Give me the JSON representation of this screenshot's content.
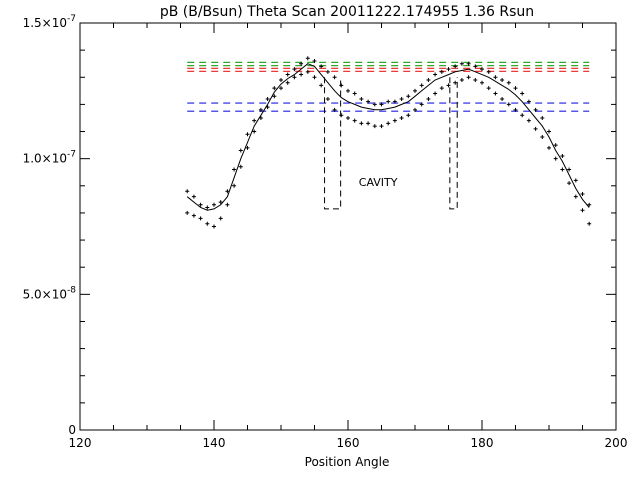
{
  "chart_data": {
    "type": "scatter",
    "title": "pB (B/Bsun) Theta Scan 20011222.174955 1.36 Rsun",
    "xlabel": "Position Angle",
    "ylabel": "",
    "xlim": [
      120,
      200
    ],
    "ylim": [
      0,
      1.5e-07
    ],
    "xticks": [
      120,
      140,
      160,
      180,
      200
    ],
    "yticks": [
      {
        "value": 0,
        "label": "0"
      },
      {
        "value": 5e-08,
        "mant": "5.0",
        "exp": "-8"
      },
      {
        "value": 1e-07,
        "mant": "1.0",
        "exp": "-7"
      },
      {
        "value": 1.5e-07,
        "mant": "1.5",
        "exp": "-7"
      }
    ],
    "tick_symbol": "×10",
    "grid": false,
    "annotation": {
      "text": "CAVITY",
      "color": "#e8201c",
      "x": 164.5,
      "y": 9e-08
    },
    "colors": {
      "green": "#2ea82e",
      "red": "#e8201c",
      "blue": "#1e1ee0",
      "black": "#000000"
    },
    "reference_lines": [
      {
        "color": "green",
        "y": 1.355e-07,
        "x0": 136,
        "x1": 196
      },
      {
        "color": "green",
        "y": 1.343e-07,
        "x0": 136,
        "x1": 196
      },
      {
        "color": "red",
        "y": 1.333e-07,
        "x0": 136,
        "x1": 196
      },
      {
        "color": "red",
        "y": 1.322e-07,
        "x0": 136,
        "x1": 196
      },
      {
        "color": "blue",
        "y": 1.205e-07,
        "x0": 136,
        "x1": 196
      },
      {
        "color": "blue",
        "y": 1.175e-07,
        "x0": 136,
        "x1": 196
      }
    ],
    "cavity_boundaries": [
      {
        "x0": 156.5,
        "x1": 158.9,
        "y_bottom": 8.15e-08,
        "y_top": 1.3e-07
      },
      {
        "x0": 175.2,
        "x1": 176.3,
        "y_bottom": 8.15e-08,
        "y_top": 1.3e-07
      }
    ],
    "series": [
      {
        "style": "crosses",
        "x": [
          136,
          137,
          138,
          139,
          140,
          141,
          142,
          143,
          144,
          145,
          146,
          147,
          148,
          149,
          150,
          151,
          152,
          153,
          154,
          155,
          156,
          157,
          158,
          159,
          160,
          161,
          162,
          163,
          164,
          165,
          166,
          167,
          168,
          169,
          170,
          171,
          172,
          173,
          174,
          175,
          176,
          177,
          178,
          179,
          180,
          181,
          182,
          183,
          184,
          185,
          186,
          187,
          188,
          189,
          190,
          191,
          192,
          193,
          194,
          195,
          196
        ],
        "values": [
          8.8e-08,
          8.6e-08,
          8.3e-08,
          8.2e-08,
          8.3e-08,
          8.4e-08,
          8.8e-08,
          9.6e-08,
          1.03e-07,
          1.09e-07,
          1.14e-07,
          1.18e-07,
          1.22e-07,
          1.26e-07,
          1.29e-07,
          1.31e-07,
          1.33e-07,
          1.35e-07,
          1.37e-07,
          1.36e-07,
          1.34e-07,
          1.32e-07,
          1.3e-07,
          1.27e-07,
          1.25e-07,
          1.24e-07,
          1.22e-07,
          1.21e-07,
          1.2e-07,
          1.2e-07,
          1.21e-07,
          1.21e-07,
          1.22e-07,
          1.23e-07,
          1.25e-07,
          1.27e-07,
          1.29e-07,
          1.31e-07,
          1.32e-07,
          1.33e-07,
          1.34e-07,
          1.35e-07,
          1.35e-07,
          1.34e-07,
          1.33e-07,
          1.32e-07,
          1.3e-07,
          1.29e-07,
          1.28e-07,
          1.26e-07,
          1.24e-07,
          1.21e-07,
          1.18e-07,
          1.15e-07,
          1.1e-07,
          1.05e-07,
          1.01e-07,
          9.6e-08,
          9.2e-08,
          8.7e-08,
          8.3e-08
        ]
      },
      {
        "style": "crosses",
        "x": [
          136,
          137,
          138,
          139,
          140,
          141,
          142,
          143,
          144,
          145,
          146,
          147,
          148,
          149,
          150,
          151,
          152,
          153,
          154,
          155,
          156,
          157,
          158,
          159,
          160,
          161,
          162,
          163,
          164,
          165,
          166,
          167,
          168,
          169,
          170,
          171,
          172,
          173,
          174,
          175,
          176,
          177,
          178,
          179,
          180,
          181,
          182,
          183,
          184,
          185,
          186,
          187,
          188,
          189,
          190,
          191,
          192,
          193,
          194,
          195,
          196
        ],
        "values": [
          8e-08,
          7.9e-08,
          7.8e-08,
          7.6e-08,
          7.5e-08,
          7.8e-08,
          8.3e-08,
          9e-08,
          9.7e-08,
          1.04e-07,
          1.1e-07,
          1.15e-07,
          1.19e-07,
          1.23e-07,
          1.26e-07,
          1.28e-07,
          1.3e-07,
          1.31e-07,
          1.32e-07,
          1.3e-07,
          1.27e-07,
          1.22e-07,
          1.18e-07,
          1.16e-07,
          1.15e-07,
          1.14e-07,
          1.13e-07,
          1.13e-07,
          1.12e-07,
          1.12e-07,
          1.13e-07,
          1.14e-07,
          1.15e-07,
          1.16e-07,
          1.18e-07,
          1.2e-07,
          1.22e-07,
          1.24e-07,
          1.26e-07,
          1.27e-07,
          1.28e-07,
          1.29e-07,
          1.3e-07,
          1.29e-07,
          1.28e-07,
          1.26e-07,
          1.24e-07,
          1.22e-07,
          1.2e-07,
          1.18e-07,
          1.16e-07,
          1.14e-07,
          1.11e-07,
          1.08e-07,
          1.04e-07,
          1e-07,
          9.6e-08,
          9.1e-08,
          8.6e-08,
          8.1e-08,
          7.6e-08
        ]
      },
      {
        "style": "solid-line",
        "x": [
          136,
          137,
          138,
          139,
          140,
          141,
          142,
          143,
          144,
          145,
          146,
          147,
          148,
          149,
          150,
          151,
          152,
          153,
          154,
          155,
          156,
          157,
          158,
          159,
          160,
          161,
          162,
          163,
          164,
          165,
          166,
          167,
          168,
          169,
          170,
          171,
          172,
          173,
          174,
          175,
          176,
          177,
          178,
          179,
          180,
          181,
          182,
          183,
          184,
          185,
          186,
          187,
          188,
          189,
          190,
          191,
          192,
          193,
          194,
          195,
          196
        ],
        "values": [
          8.6e-08,
          8.4e-08,
          8.2e-08,
          8.1e-08,
          8.15e-08,
          8.3e-08,
          8.6e-08,
          9.3e-08,
          1e-07,
          1.06e-07,
          1.12e-07,
          1.16e-07,
          1.2e-07,
          1.245e-07,
          1.275e-07,
          1.295e-07,
          1.31e-07,
          1.33e-07,
          1.35e-07,
          1.34e-07,
          1.31e-07,
          1.28e-07,
          1.25e-07,
          1.225e-07,
          1.21e-07,
          1.2e-07,
          1.19e-07,
          1.185e-07,
          1.18e-07,
          1.18e-07,
          1.185e-07,
          1.19e-07,
          1.2e-07,
          1.21e-07,
          1.23e-07,
          1.25e-07,
          1.27e-07,
          1.29e-07,
          1.3e-07,
          1.31e-07,
          1.32e-07,
          1.325e-07,
          1.33e-07,
          1.32e-07,
          1.31e-07,
          1.3e-07,
          1.285e-07,
          1.27e-07,
          1.255e-07,
          1.235e-07,
          1.21e-07,
          1.18e-07,
          1.15e-07,
          1.12e-07,
          1.08e-07,
          1.03e-07,
          9.9e-08,
          9.4e-08,
          8.9e-08,
          8.5e-08,
          8.2e-08
        ]
      }
    ]
  }
}
